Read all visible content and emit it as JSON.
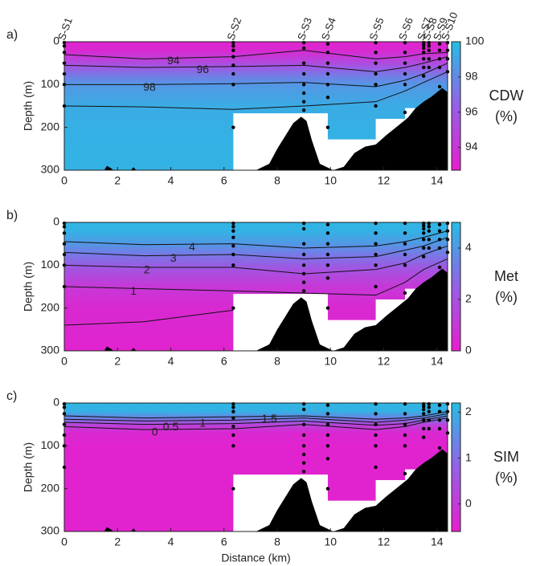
{
  "chart_data": [
    {
      "type": "contour",
      "panel_label": "a)",
      "colorbar_title": "CDW",
      "colorbar_unit": "(%)",
      "ylabel": "Depth (m)",
      "xlim": [
        0,
        14.4
      ],
      "xticks": [
        0,
        2,
        4,
        6,
        8,
        10,
        12,
        14
      ],
      "ylim": [
        0,
        300
      ],
      "y_inverted": true,
      "yticks": [
        0,
        100,
        200,
        300
      ],
      "clim": [
        92.7,
        100
      ],
      "cticks": [
        94,
        96,
        98,
        100
      ],
      "colormap": [
        "#e61ecd",
        "#9560e6",
        "#26bde4"
      ],
      "stations": {
        "names": [
          "S-S1",
          "S-S2",
          "S-S3",
          "S-S4",
          "S-S5",
          "S-S6",
          "S-S7",
          "S-S8",
          "S-S9",
          "S-S10"
        ],
        "x": [
          0,
          6.35,
          9,
          9.9,
          11.7,
          12.8,
          13.5,
          13.7,
          14.1,
          14.4
        ]
      },
      "samples": {
        "x": [
          0,
          0,
          0,
          0,
          0,
          0,
          0,
          6.35,
          6.35,
          6.35,
          6.35,
          6.35,
          6.35,
          6.35,
          6.35,
          9,
          9,
          9,
          9,
          9,
          9,
          9,
          9,
          9.9,
          9.9,
          9.9,
          9.9,
          9.9,
          9.9,
          9.9,
          11.7,
          11.7,
          11.7,
          11.7,
          11.7,
          11.7,
          12.8,
          12.8,
          12.8,
          12.8,
          12.8,
          12.8,
          13.5,
          13.5,
          13.5,
          13.5,
          13.5,
          13.5,
          13.5,
          13.7,
          13.7,
          13.7,
          13.7,
          13.7,
          14.1,
          14.1,
          14.1,
          14.1,
          14.1,
          14.4,
          14.4,
          14.4,
          14.4
        ],
        "depth": [
          2,
          10,
          25,
          50,
          75,
          100,
          150,
          2,
          10,
          20,
          35,
          55,
          75,
          100,
          200,
          2,
          15,
          50,
          75,
          100,
          120,
          140,
          160,
          5,
          25,
          50,
          75,
          100,
          130,
          200,
          2,
          25,
          50,
          75,
          100,
          150,
          2,
          25,
          50,
          75,
          100,
          165,
          2,
          8,
          15,
          25,
          40,
          60,
          80,
          2,
          10,
          20,
          40,
          60,
          5,
          20,
          40,
          60,
          105,
          2,
          20,
          40,
          70
        ]
      },
      "profile_depth": [
        0,
        20,
        40,
        60,
        80,
        100,
        150,
        200,
        300
      ],
      "profile_values": [
        93,
        93.3,
        94.5,
        96,
        97.5,
        98.5,
        99.3,
        99.5,
        99.6
      ],
      "contours": [
        {
          "level": 94,
          "x": [
            0,
            3,
            6.35,
            9,
            11.7,
            12.8,
            13.5,
            14.4
          ],
          "depth": [
            30,
            40,
            35,
            20,
            40,
            35,
            28,
            25
          ]
        },
        {
          "level": 96,
          "x": [
            0,
            3,
            6.35,
            9,
            11.7,
            12.8,
            13.5,
            14.4
          ],
          "depth": [
            55,
            60,
            58,
            55,
            70,
            60,
            50,
            35
          ]
        },
        {
          "level": 98,
          "x": [
            0,
            3,
            6.35,
            9,
            11.7,
            12.8,
            13.5,
            14.4
          ],
          "depth": [
            100,
            100,
            98,
            95,
            105,
            90,
            75,
            50
          ]
        },
        {
          "x": [
            0,
            3,
            6.35,
            9,
            11.7,
            12.8,
            13.5,
            14.4
          ],
          "depth": [
            150,
            152,
            158,
            150,
            140,
            115,
            95,
            70
          ]
        }
      ]
    },
    {
      "type": "contour",
      "panel_label": "b)",
      "colorbar_title": "Met",
      "colorbar_unit": "(%)",
      "ylabel": "Depth (m)",
      "xlim": [
        0,
        14.4
      ],
      "xticks": [
        0,
        2,
        4,
        6,
        8,
        10,
        12,
        14
      ],
      "ylim": [
        0,
        300
      ],
      "y_inverted": true,
      "yticks": [
        0,
        100,
        200,
        300
      ],
      "clim": [
        0,
        5
      ],
      "cticks": [
        0,
        2,
        4
      ],
      "colormap": [
        "#e61ecd",
        "#9560e6",
        "#26bde4"
      ],
      "profile_depth": [
        0,
        20,
        50,
        80,
        110,
        150,
        200,
        300
      ],
      "profile_values": [
        4.8,
        4.7,
        4,
        3,
        2,
        1,
        0.4,
        0.2
      ],
      "contours": [
        {
          "level": 4,
          "x": [
            0,
            3,
            6.35,
            9,
            11.7,
            12.8,
            13.5,
            14.4
          ],
          "depth": [
            45,
            52,
            50,
            60,
            55,
            45,
            35,
            20
          ]
        },
        {
          "level": 3,
          "x": [
            0,
            3,
            6.35,
            9,
            11.7,
            12.8,
            13.5,
            14.4
          ],
          "depth": [
            70,
            78,
            75,
            85,
            80,
            65,
            55,
            35
          ]
        },
        {
          "level": 2,
          "x": [
            0,
            3,
            6.35,
            9,
            11.7,
            12.8,
            13.5,
            14.4
          ],
          "depth": [
            100,
            105,
            105,
            120,
            110,
            95,
            75,
            55
          ]
        },
        {
          "level": 1,
          "x": [
            0,
            3,
            6.35,
            9,
            11.7,
            12.8,
            13.5,
            14.4
          ],
          "depth": [
            150,
            155,
            160,
            165,
            170,
            140,
            110,
            85
          ]
        },
        {
          "x": [
            0,
            3,
            6.35
          ],
          "depth": [
            240,
            232,
            205
          ]
        }
      ]
    },
    {
      "type": "contour",
      "panel_label": "c)",
      "colorbar_title": "SIM",
      "colorbar_unit": "(%)",
      "ylabel": "Depth (m)",
      "xlabel": "Distance (km)",
      "xlim": [
        0,
        14.4
      ],
      "xticks": [
        0,
        2,
        4,
        6,
        8,
        10,
        12,
        14
      ],
      "ylim": [
        0,
        300
      ],
      "y_inverted": true,
      "yticks": [
        0,
        100,
        200,
        300
      ],
      "clim": [
        -0.6,
        2.2
      ],
      "cticks": [
        0,
        1,
        2
      ],
      "colormap": [
        "#e61ecd",
        "#9560e6",
        "#26bde4"
      ],
      "profile_depth": [
        0,
        20,
        35,
        50,
        70,
        100,
        300
      ],
      "profile_values": [
        2.1,
        2,
        1.3,
        0.2,
        -0.4,
        -0.5,
        -0.5
      ],
      "contours": [
        {
          "level": 1.5,
          "x": [
            0,
            3,
            6.35,
            9,
            11.7,
            12.8,
            13.5,
            14.4
          ],
          "depth": [
            30,
            35,
            32,
            30,
            38,
            35,
            30,
            20
          ]
        },
        {
          "level": 1,
          "x": [
            0,
            3,
            6.35,
            9,
            11.7,
            12.8,
            13.5,
            14.4
          ],
          "depth": [
            38,
            42,
            40,
            35,
            45,
            40,
            35,
            25
          ]
        },
        {
          "level": 0.5,
          "x": [
            0,
            3,
            6.35,
            9,
            11.7,
            12.8,
            13.5,
            14.4
          ],
          "depth": [
            45,
            50,
            48,
            42,
            52,
            48,
            40,
            30
          ]
        },
        {
          "level": 0,
          "x": [
            0,
            3,
            6.35,
            9,
            11.7,
            12.8,
            13.5,
            14.4
          ],
          "depth": [
            55,
            62,
            60,
            50,
            62,
            55,
            45,
            35
          ]
        }
      ]
    }
  ]
}
